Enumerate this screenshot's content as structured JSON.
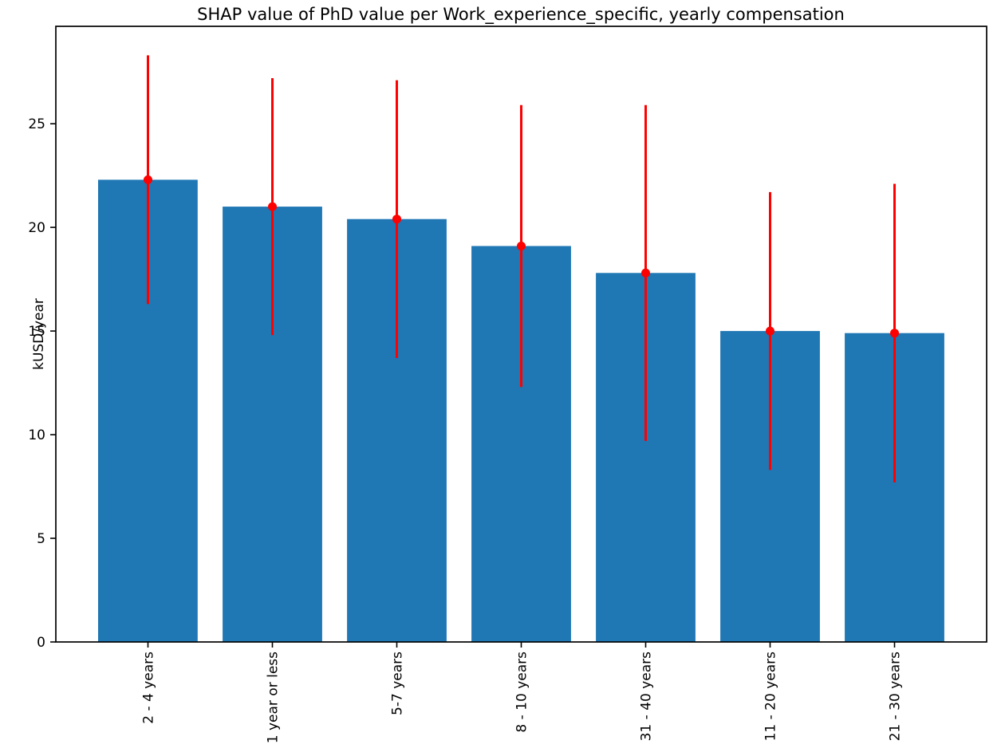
{
  "chart_data": {
    "type": "bar",
    "title": "SHAP value of PhD value per Work_experience_specific, yearly compensation",
    "xlabel": "",
    "ylabel": "kUSD/year",
    "categories": [
      "2 - 4 years",
      "1 year or less",
      "5-7 years",
      "8 - 10 years",
      "31 - 40 years",
      "11 - 20 years",
      "21 - 30 years"
    ],
    "series": [
      {
        "name": "SHAP value",
        "values": [
          22.3,
          21.0,
          20.4,
          19.1,
          17.8,
          15.0,
          14.9
        ],
        "errors": [
          6.0,
          6.2,
          6.7,
          6.8,
          8.1,
          6.7,
          7.2
        ]
      }
    ],
    "yticks": [
      0,
      5,
      10,
      15,
      20,
      25
    ],
    "ylim": [
      0,
      29.7
    ],
    "xlim": [
      -0.74,
      6.74
    ],
    "grid": false,
    "legend_position": "none",
    "bar_color": "#1f77b4",
    "error_color": "#ff0000",
    "axis_color": "#000000",
    "background_color": "#ffffff",
    "x_tick_rotation_degrees": 90,
    "bar_width_fraction": 0.8
  }
}
